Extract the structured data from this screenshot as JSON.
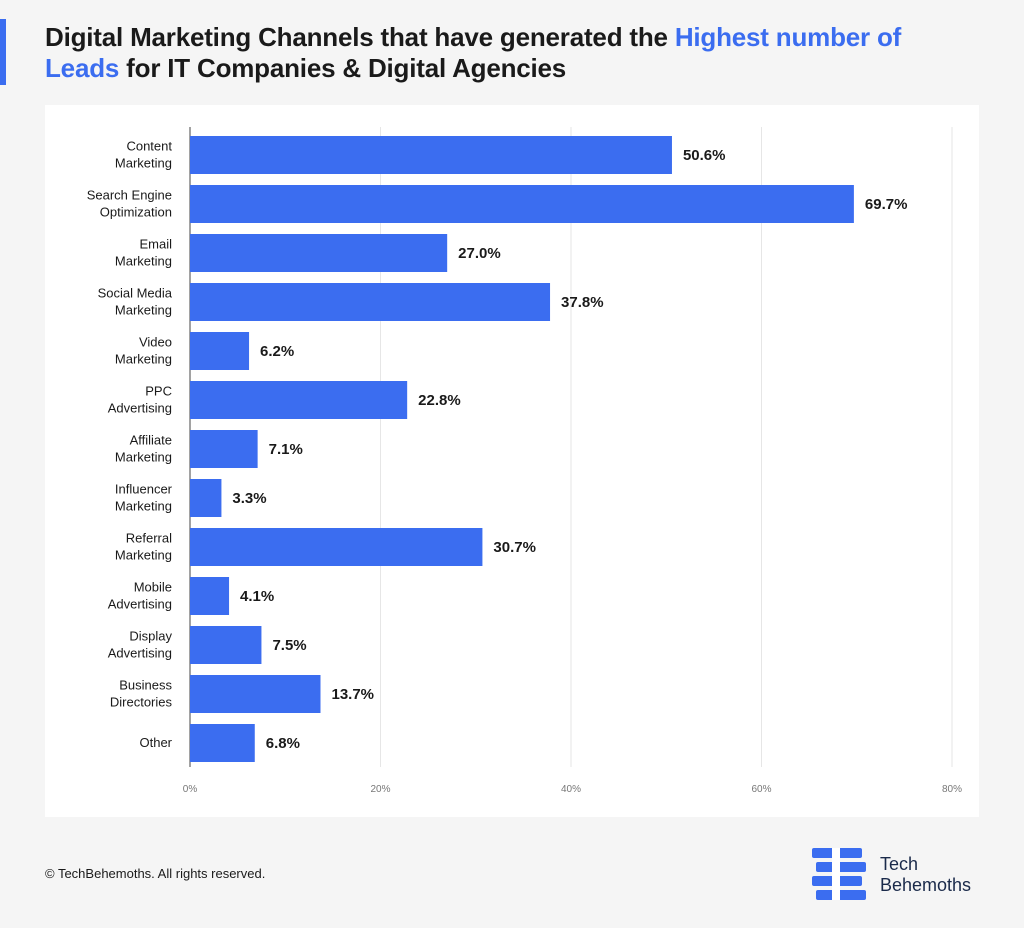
{
  "header": {
    "title_part1": "Digital Marketing Channels that have generated the ",
    "title_highlight": "Highest number of Leads",
    "title_part2": " for IT Companies & Digital Agencies"
  },
  "colors": {
    "accent": "#3b6df0",
    "bar": "#3b6df0",
    "brand_dark": "#1a2a4a"
  },
  "chart_data": {
    "type": "bar",
    "orientation": "horizontal",
    "title": "Digital Marketing Channels that have generated the Highest number of Leads for IT Companies & Digital Agencies",
    "categories": [
      [
        "Content",
        "Marketing"
      ],
      [
        "Search Engine",
        "Optimization"
      ],
      [
        "Email",
        "Marketing"
      ],
      [
        "Social Media",
        "Marketing"
      ],
      [
        "Video",
        "Marketing"
      ],
      [
        "PPC",
        "Advertising"
      ],
      [
        "Affiliate",
        "Marketing"
      ],
      [
        "Influencer",
        "Marketing"
      ],
      [
        "Referral",
        "Marketing"
      ],
      [
        "Mobile",
        "Advertising"
      ],
      [
        "Display",
        "Advertising"
      ],
      [
        "Business",
        "Directories"
      ],
      [
        "Other"
      ]
    ],
    "values": [
      50.6,
      69.7,
      27.0,
      37.8,
      6.2,
      22.8,
      7.1,
      3.3,
      30.7,
      4.1,
      7.5,
      13.7,
      6.8
    ],
    "value_labels": [
      "50.6%",
      "69.7%",
      "27.0%",
      "37.8%",
      "6.2%",
      "22.8%",
      "7.1%",
      "3.3%",
      "30.7%",
      "4.1%",
      "7.5%",
      "13.7%",
      "6.8%"
    ],
    "xlim": [
      0,
      80
    ],
    "xticks": [
      0,
      20,
      40,
      60,
      80
    ],
    "xtick_labels": [
      "0%",
      "20%",
      "40%",
      "60%",
      "80%"
    ],
    "grid": true,
    "xlabel": "",
    "ylabel": ""
  },
  "footer": {
    "copyright": "© TechBehemoths. All rights reserved."
  },
  "brand": {
    "line1": "Tech",
    "line2": "Behemoths",
    "logo_icon": "techbehemoths-logo-icon"
  }
}
